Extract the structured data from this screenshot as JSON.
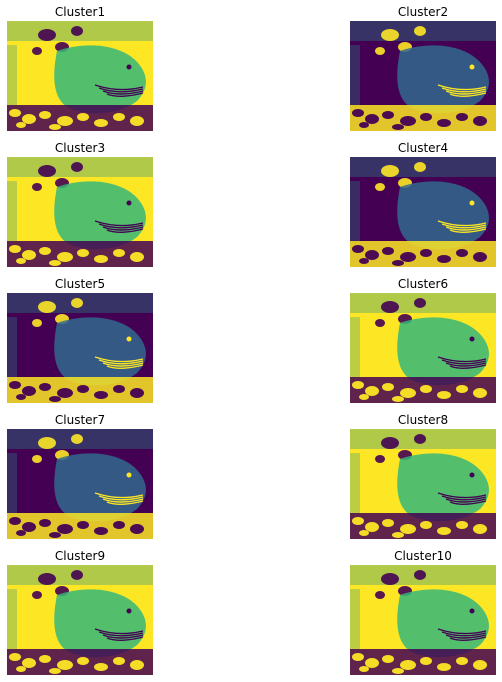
{
  "figure": {
    "panels": [
      {
        "title": "Cluster1",
        "polarity": "bright"
      },
      {
        "title": "Cluster2",
        "polarity": "dark"
      },
      {
        "title": "Cluster3",
        "polarity": "bright"
      },
      {
        "title": "Cluster4",
        "polarity": "dark"
      },
      {
        "title": "Cluster5",
        "polarity": "dark"
      },
      {
        "title": "Cluster6",
        "polarity": "bright"
      },
      {
        "title": "Cluster7",
        "polarity": "dark"
      },
      {
        "title": "Cluster8",
        "polarity": "bright"
      },
      {
        "title": "Cluster9",
        "polarity": "bright"
      },
      {
        "title": "Cluster10",
        "polarity": "bright"
      }
    ],
    "colormap": {
      "name": "viridis",
      "low": "#440154",
      "mid_low": "#31688e",
      "mid": "#21918c",
      "mid_high": "#35b779",
      "high": "#fde725"
    }
  }
}
